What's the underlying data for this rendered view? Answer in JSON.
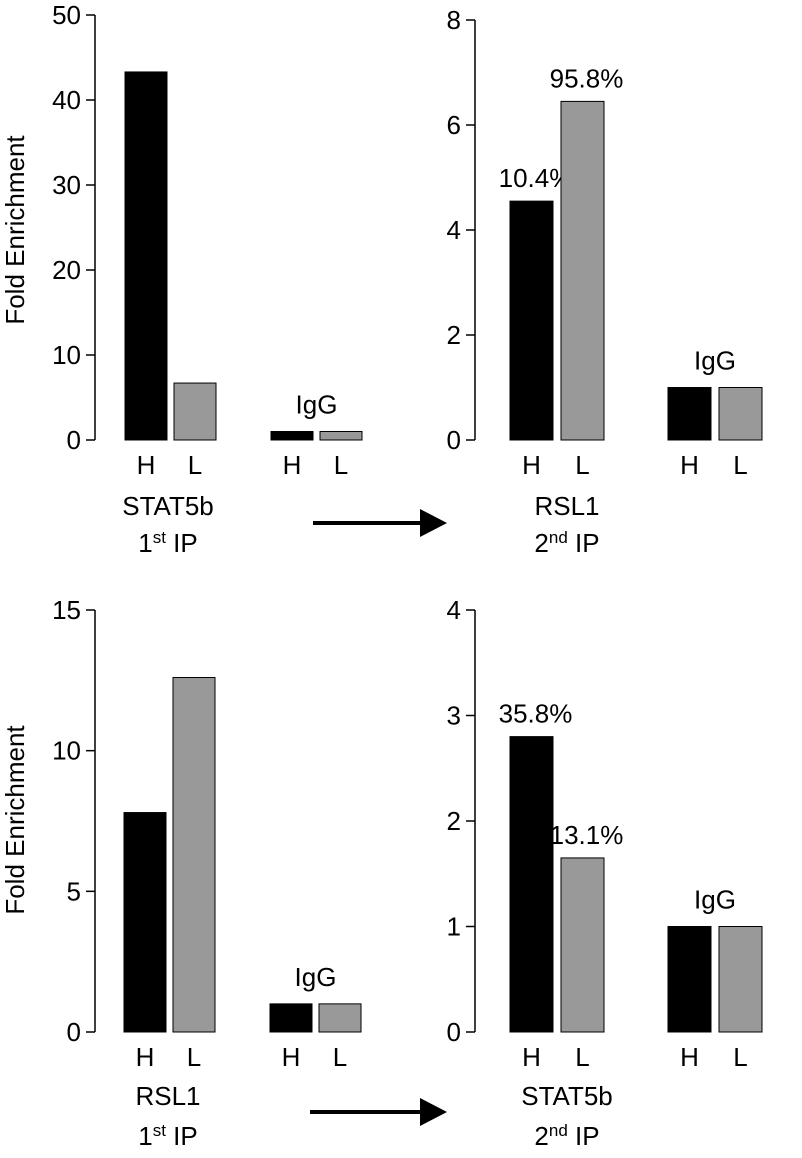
{
  "chart_data": [
    {
      "type": "bar",
      "ylabel": "Fold Enrichment",
      "ylim": [
        0,
        50
      ],
      "yticks": [
        0,
        10,
        20,
        30,
        40,
        50
      ],
      "categories": [
        "H",
        "L",
        "H",
        "L"
      ],
      "values": [
        43.3,
        6.7,
        1.0,
        1.0
      ],
      "colors": [
        "#000000",
        "#999999",
        "#000000",
        "#999999"
      ],
      "group_label": "IgG",
      "caption": {
        "name": "STAT5b",
        "base": "1",
        "sup": "st",
        "rest": " IP"
      }
    },
    {
      "type": "bar",
      "ylim": [
        0,
        8
      ],
      "yticks": [
        0,
        2,
        4,
        6,
        8
      ],
      "categories": [
        "H",
        "L",
        "H",
        "L"
      ],
      "values": [
        4.55,
        6.45,
        1.0,
        1.0
      ],
      "value_annotations": [
        "10.4%",
        "95.8%",
        null,
        null
      ],
      "colors": [
        "#000000",
        "#999999",
        "#000000",
        "#999999"
      ],
      "group_label": "IgG",
      "caption": {
        "name": "RSL1",
        "base": "2",
        "sup": "nd",
        "rest": " IP"
      }
    },
    {
      "type": "bar",
      "ylabel": "Fold Enrichment",
      "ylim": [
        0,
        15
      ],
      "yticks": [
        0,
        5,
        10,
        15
      ],
      "categories": [
        "H",
        "L",
        "H",
        "L"
      ],
      "values": [
        7.8,
        12.6,
        1.0,
        1.0
      ],
      "colors": [
        "#000000",
        "#999999",
        "#000000",
        "#999999"
      ],
      "group_label": "IgG",
      "caption": {
        "name": "RSL1",
        "base": "1",
        "sup": "st",
        "rest": " IP"
      }
    },
    {
      "type": "bar",
      "ylim": [
        0,
        4
      ],
      "yticks": [
        0,
        1,
        2,
        3,
        4
      ],
      "categories": [
        "H",
        "L",
        "H",
        "L"
      ],
      "values": [
        2.8,
        1.65,
        1.0,
        1.0
      ],
      "value_annotations": [
        "35.8%",
        "13.1%",
        null,
        null
      ],
      "colors": [
        "#000000",
        "#999999",
        "#000000",
        "#999999"
      ],
      "group_label": "IgG",
      "caption": {
        "name": "STAT5b",
        "base": "2",
        "sup": "nd",
        "rest": " IP"
      }
    }
  ]
}
